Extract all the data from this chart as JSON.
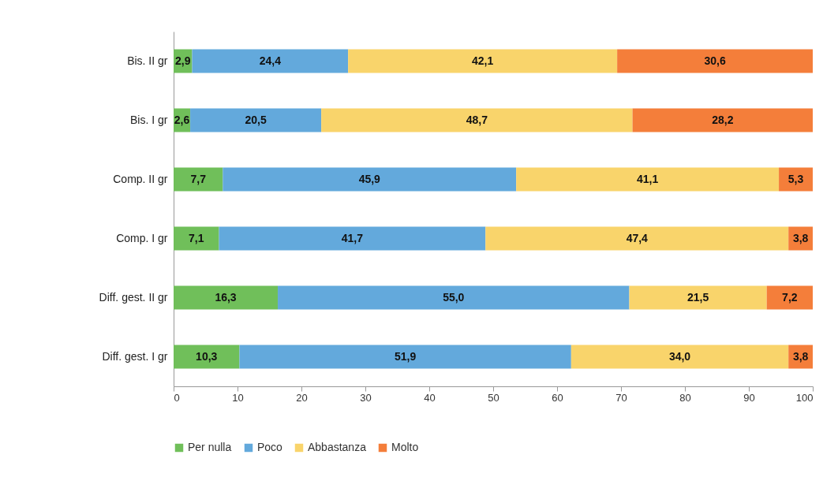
{
  "chart_data": {
    "type": "bar",
    "orientation": "horizontal",
    "stacked": true,
    "legend": "bottom",
    "categories": [
      "Bis. II gr",
      "Bis. I gr",
      "Comp. II gr",
      "Comp. I gr",
      "Diff. gest. II gr",
      "Diff. gest. I gr"
    ],
    "xlim": [
      0,
      100
    ],
    "xticks": [
      0,
      10,
      20,
      30,
      40,
      50,
      60,
      70,
      80,
      90,
      100
    ],
    "series": [
      {
        "name": "Per nulla",
        "color": "#70bf5a",
        "values": [
          2.9,
          2.6,
          7.7,
          7.1,
          16.3,
          10.3
        ],
        "value_labels": [
          "2,9",
          "2,6",
          "7,7",
          "7,1",
          "16,3",
          "10,3"
        ]
      },
      {
        "name": "Poco",
        "color": "#63a9dc",
        "values": [
          24.4,
          20.5,
          45.9,
          41.7,
          55.0,
          51.9
        ],
        "value_labels": [
          "24,4",
          "20,5",
          "45,9",
          "41,7",
          "55,0",
          "51,9"
        ]
      },
      {
        "name": "Abbastanza",
        "color": "#f9d46b",
        "values": [
          42.1,
          48.7,
          41.1,
          47.4,
          21.5,
          34.0
        ],
        "value_labels": [
          "42,1",
          "48,7",
          "41,1",
          "47,4",
          "21,5",
          "34,0"
        ]
      },
      {
        "name": "Molto",
        "color": "#f47e3a",
        "values": [
          30.6,
          28.2,
          5.3,
          3.8,
          7.2,
          3.8
        ],
        "value_labels": [
          "30,6",
          "28,2",
          "5,3",
          "3,8",
          "7,2",
          "3,8"
        ]
      }
    ]
  }
}
